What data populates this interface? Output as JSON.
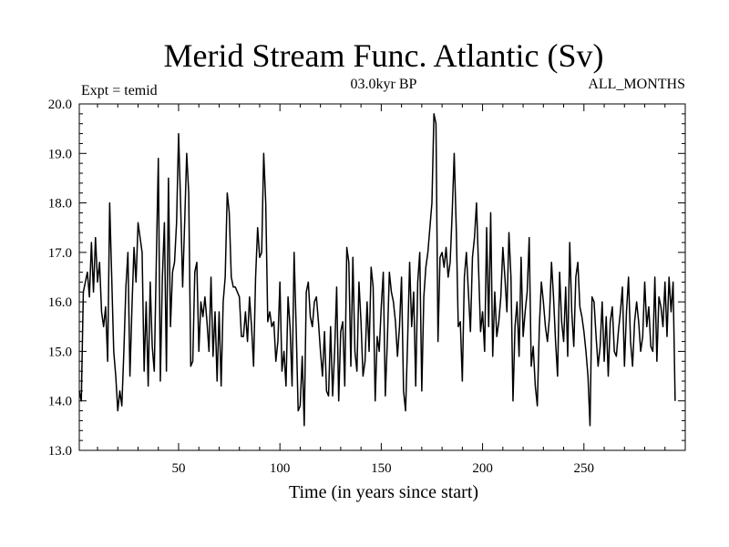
{
  "chart_data": {
    "type": "line",
    "title": "Merid Stream Func. Atlantic (Sv)",
    "subtitle": "03.0kyr BP",
    "annotation_left": "Expt = temid",
    "annotation_right": "ALL_MONTHS",
    "xlabel": "Time (in years since start)",
    "ylabel": "",
    "xlim": [
      1,
      300
    ],
    "ylim": [
      13.0,
      20.0
    ],
    "x_ticks": [
      50,
      100,
      150,
      200,
      250
    ],
    "y_ticks": [
      13.0,
      14.0,
      15.0,
      16.0,
      17.0,
      18.0,
      19.0,
      20.0
    ],
    "y_tick_labels": [
      "13.0",
      "14.0",
      "15.0",
      "16.0",
      "17.0",
      "18.0",
      "19.0",
      "20.0"
    ],
    "x_start": 1,
    "x_step": 1,
    "series": [
      {
        "name": "Merid Stream Func. Atlantic",
        "color": "#000000",
        "values": [
          14.2,
          14.0,
          16.2,
          16.4,
          16.6,
          16.1,
          17.2,
          16.2,
          17.3,
          16.4,
          16.8,
          15.8,
          15.5,
          15.9,
          14.8,
          18.0,
          16.5,
          15.0,
          14.5,
          13.8,
          14.2,
          13.9,
          15.0,
          16.3,
          17.0,
          14.5,
          15.9,
          17.1,
          16.4,
          17.6,
          17.3,
          17.0,
          14.6,
          16.0,
          14.3,
          16.4,
          15.1,
          14.6,
          16.8,
          18.9,
          14.4,
          16.5,
          17.6,
          14.6,
          18.5,
          15.5,
          16.6,
          16.8,
          17.6,
          19.4,
          18.0,
          16.3,
          17.6,
          19.0,
          18.2,
          14.7,
          14.8,
          16.6,
          16.8,
          15.0,
          16.0,
          15.7,
          16.1,
          15.6,
          15.0,
          16.5,
          14.9,
          15.8,
          14.4,
          15.8,
          14.3,
          16.0,
          16.5,
          18.2,
          17.8,
          16.5,
          16.3,
          16.3,
          16.2,
          16.1,
          15.3,
          15.3,
          15.8,
          15.2,
          16.1,
          15.5,
          14.7,
          16.5,
          17.5,
          16.9,
          17.0,
          19.0,
          18.0,
          15.6,
          15.8,
          15.5,
          15.6,
          14.8,
          15.2,
          16.4,
          14.6,
          15.0,
          14.3,
          16.1,
          15.5,
          14.3,
          17.0,
          15.5,
          13.8,
          13.9,
          14.9,
          13.5,
          16.2,
          16.4,
          15.7,
          15.5,
          16.0,
          16.1,
          15.6,
          15.0,
          14.5,
          15.4,
          14.2,
          14.1,
          15.5,
          14.1,
          15.0,
          16.3,
          14.0,
          15.4,
          15.6,
          14.3,
          17.1,
          16.8,
          14.7,
          16.9,
          15.0,
          14.6,
          16.4,
          15.6,
          14.5,
          14.8,
          16.0,
          15.0,
          16.7,
          16.3,
          14.0,
          15.3,
          15.0,
          15.9,
          16.6,
          14.1,
          15.2,
          16.6,
          16.2,
          16.0,
          15.6,
          14.9,
          15.5,
          16.5,
          14.2,
          13.8,
          15.2,
          16.8,
          15.5,
          16.2,
          14.3,
          16.4,
          17.0,
          14.2,
          16.1,
          16.7,
          17.0,
          17.5,
          18.0,
          19.8,
          19.6,
          15.2,
          16.9,
          17.0,
          16.7,
          17.1,
          16.5,
          16.8,
          17.8,
          19.0,
          17.5,
          15.5,
          15.6,
          14.4,
          16.5,
          17.0,
          16.2,
          15.4,
          16.9,
          17.3,
          18.0,
          16.7,
          15.4,
          15.8,
          15.0,
          17.5,
          15.5,
          17.8,
          14.9,
          16.2,
          15.3,
          15.6,
          16.1,
          17.1,
          16.5,
          15.8,
          17.4,
          16.5,
          14.0,
          15.5,
          16.0,
          14.9,
          16.9,
          15.3,
          15.8,
          16.2,
          17.3,
          14.7,
          15.1,
          14.3,
          13.9,
          15.5,
          16.4,
          16.0,
          15.5,
          15.2,
          15.7,
          16.8,
          16.1,
          15.2,
          14.5,
          16.6,
          15.6,
          15.2,
          16.3,
          14.9,
          17.2,
          15.8,
          15.1,
          16.5,
          16.8,
          15.9,
          15.7,
          15.4,
          15.0,
          14.5,
          13.5,
          16.1,
          16.0,
          15.3,
          14.7,
          15.1,
          16.0,
          14.8,
          15.7,
          14.5,
          15.6,
          15.9,
          15.0,
          14.9,
          15.4,
          15.8,
          16.3,
          14.7,
          15.8,
          16.5,
          15.2,
          14.7,
          15.6,
          16.0,
          15.6,
          15.0,
          15.3,
          16.4,
          15.5,
          15.9,
          15.1,
          15.0,
          16.5,
          14.8,
          16.1,
          15.9,
          15.5,
          16.4,
          15.3,
          16.5,
          15.8,
          16.4,
          14.0
        ]
      }
    ]
  }
}
